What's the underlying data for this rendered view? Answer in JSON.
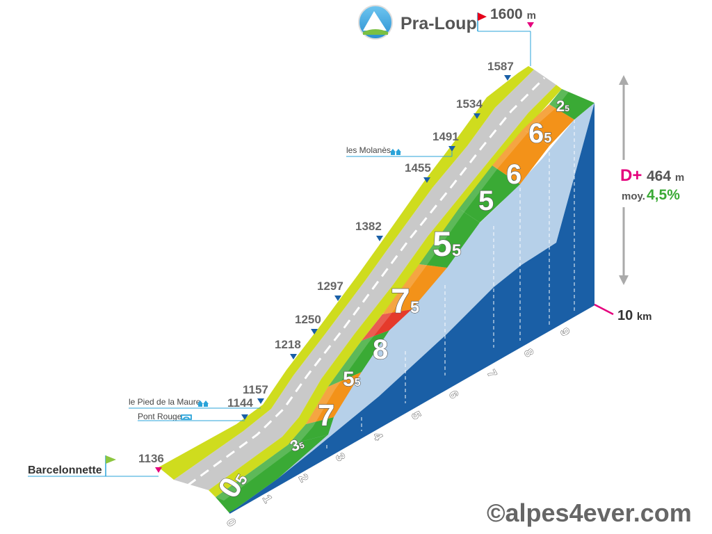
{
  "header": {
    "summit_name": "Pra-Loup",
    "summit_altitude": "1600",
    "summit_unit": "m",
    "start_name": "Barcelonnette",
    "start_altitude": "1136"
  },
  "stats": {
    "d_label": "D+",
    "d_value": "464",
    "d_unit": "m",
    "avg_label": "moy.",
    "avg_value": "4,5%"
  },
  "distance": {
    "value": "10",
    "unit": "km"
  },
  "waypoints": [
    {
      "name": "le Pied de la Maure",
      "altitude": "1144"
    },
    {
      "name": "Pont Rouge",
      "altitude": ""
    },
    {
      "name": "les Molanès",
      "altitude": "1491"
    }
  ],
  "altitude_markers": [
    "1157",
    "1218",
    "1250",
    "1297",
    "1382",
    "1455",
    "1534",
    "1587"
  ],
  "km_labels": [
    "0",
    "1",
    "2",
    "3",
    "4",
    "5",
    "6",
    "7",
    "8",
    "9"
  ],
  "gradients": [
    {
      "int": "0",
      "dec": "5"
    },
    {
      "int": "3",
      "dec": "5"
    },
    {
      "int": "7",
      "dec": ""
    },
    {
      "int": "5",
      "dec": "5"
    },
    {
      "int": "8",
      "dec": ""
    },
    {
      "int": "7",
      "dec": "5"
    },
    {
      "int": "5",
      "dec": "5"
    },
    {
      "int": "5",
      "dec": ""
    },
    {
      "int": "6",
      "dec": ""
    },
    {
      "int": "6",
      "dec": "5"
    },
    {
      "int": "2",
      "dec": "5"
    }
  ],
  "colors": {
    "green": "#3aaa35",
    "orange": "#f39219",
    "red": "#e53a2b",
    "blue": "#1a5fa6",
    "road": "#c9c9c9",
    "edge": "#cfdc1e",
    "accent": "#e5007d"
  },
  "copyright": "©alpes4ever.com"
}
